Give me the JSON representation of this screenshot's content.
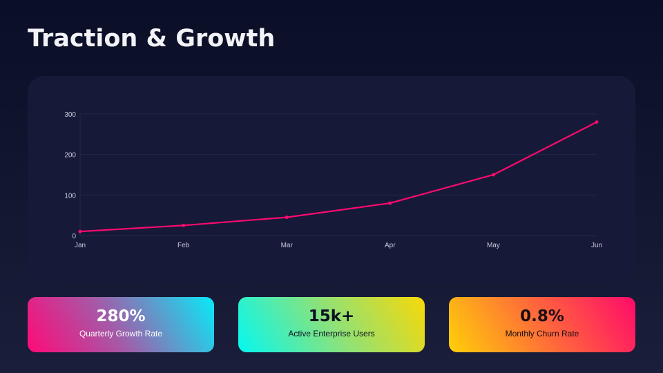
{
  "title": "Traction & Growth",
  "chart_data": {
    "type": "line",
    "categories": [
      "Jan",
      "Feb",
      "Mar",
      "Apr",
      "May",
      "Jun"
    ],
    "series": [
      {
        "values": [
          10,
          25,
          45,
          80,
          150,
          280
        ],
        "color": "#ff0a6e"
      }
    ],
    "ylim": [
      0,
      300
    ],
    "yticks": [
      "0",
      "100",
      "200",
      "300"
    ],
    "grid": true
  },
  "stats": [
    {
      "value": "280%",
      "label": "Quarterly Growth Rate"
    },
    {
      "value": "15k+",
      "label": "Active Enterprise Users"
    },
    {
      "value": "0.8%",
      "label": "Monthly Churn Rate"
    }
  ]
}
